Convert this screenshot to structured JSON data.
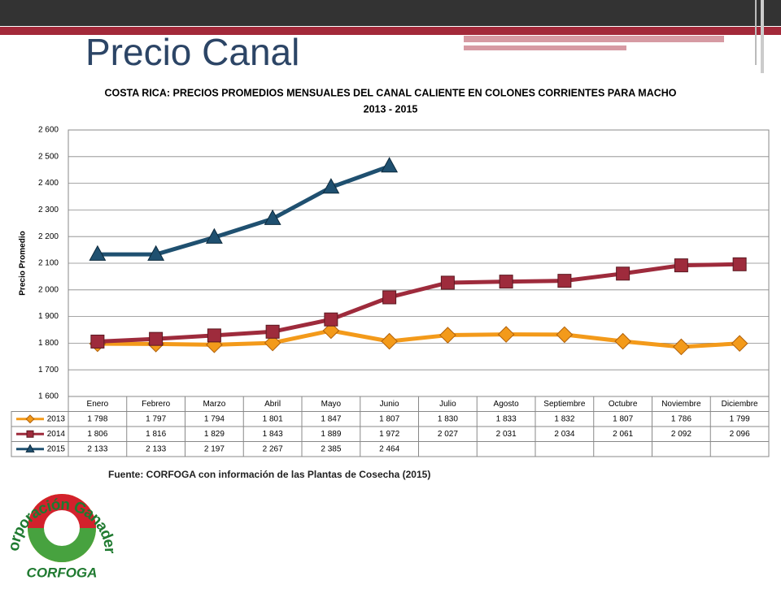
{
  "slide_title": "Precio Canal",
  "source": "Fuente: CORFOGA con información de las Plantas de Cosecha (2015)",
  "logo": {
    "top": "Corporación Ganadera",
    "bottom": "CORFOGA"
  },
  "chart_data": {
    "type": "line",
    "title": "COSTA RICA: PRECIOS PROMEDIOS MENSUALES DEL CANAL CALIENTE EN COLONES CORRIENTES PARA MACHO",
    "subtitle": "2013 - 2015",
    "y_label": "Precio Promedio",
    "categories": [
      "Enero",
      "Febrero",
      "Marzo",
      "Abril",
      "Mayo",
      "Junio",
      "Julio",
      "Agosto",
      "Septiembre",
      "Octubre",
      "Noviembre",
      "Diciembre"
    ],
    "series": [
      {
        "name": "2013",
        "color": "#f39a1a",
        "marker": "diamond",
        "values": [
          1798,
          1797,
          1794,
          1801,
          1847,
          1807,
          1830,
          1833,
          1832,
          1807,
          1786,
          1799
        ],
        "value_labels": [
          "1 798",
          "1 797",
          "1 794",
          "1 801",
          "1 847",
          "1 807",
          "1 830",
          "1 833",
          "1 832",
          "1 807",
          "1 786",
          "1 799"
        ]
      },
      {
        "name": "2014",
        "color": "#9e2b3c",
        "marker": "square",
        "values": [
          1806,
          1816,
          1829,
          1843,
          1889,
          1972,
          2027,
          2031,
          2034,
          2061,
          2092,
          2096
        ],
        "value_labels": [
          "1 806",
          "1 816",
          "1 829",
          "1 843",
          "1 889",
          "1 972",
          "2 027",
          "2 031",
          "2 034",
          "2 061",
          "2 092",
          "2 096"
        ]
      },
      {
        "name": "2015",
        "color": "#1f5070",
        "marker": "triangle",
        "values": [
          2133,
          2133,
          2197,
          2267,
          2385,
          2464,
          null,
          null,
          null,
          null,
          null,
          null
        ],
        "value_labels": [
          "2 133",
          "2 133",
          "2 197",
          "2 267",
          "2 385",
          "2 464",
          null,
          null,
          null,
          null,
          null,
          null
        ]
      }
    ],
    "ylim": [
      1600,
      2600
    ],
    "yticks": [
      {
        "value": 1600,
        "label": "1 600"
      },
      {
        "value": 1700,
        "label": "1 700"
      },
      {
        "value": 1800,
        "label": "1 800"
      },
      {
        "value": 1900,
        "label": "1 900"
      },
      {
        "value": 2000,
        "label": "2 000"
      },
      {
        "value": 2100,
        "label": "2 100"
      },
      {
        "value": 2200,
        "label": "2 200"
      },
      {
        "value": 2300,
        "label": "2 300"
      },
      {
        "value": 2400,
        "label": "2 400"
      },
      {
        "value": 2500,
        "label": "2 500"
      },
      {
        "value": 2600,
        "label": "2 600"
      }
    ],
    "grid": true
  }
}
